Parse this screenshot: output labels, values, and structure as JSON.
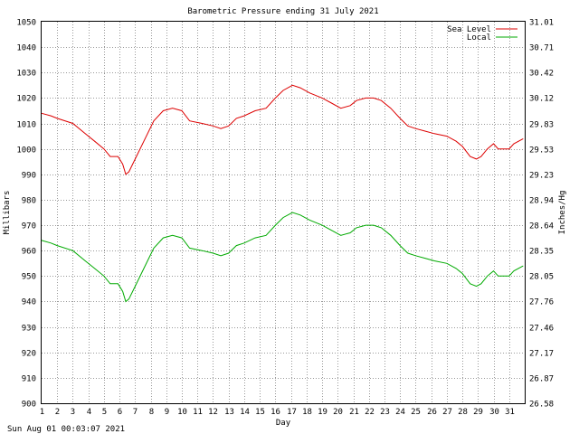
{
  "footer_timestamp": "Sun Aug 01 00:03:07 2021",
  "colors": {
    "sea_level": "#dd0000",
    "local": "#00aa00",
    "grid": "#999999",
    "axis": "#000000"
  },
  "chart_data": {
    "type": "line",
    "title": "Barometric Pressure ending 31 July 2021",
    "xlabel": "Day",
    "ylabel": "Millibars",
    "ylabel_right": "Inches/Hg",
    "grid": true,
    "legend_position": "top-right",
    "xlim": [
      1,
      32
    ],
    "ylim": [
      900,
      1050
    ],
    "x_ticks": [
      "1",
      "2",
      "3",
      "4",
      "5",
      "6",
      "7",
      "8",
      "9",
      "10",
      "11",
      "12",
      "13",
      "14",
      "15",
      "16",
      "17",
      "18",
      "19",
      "20",
      "21",
      "22",
      "23",
      "24",
      "25",
      "26",
      "27",
      "28",
      "29",
      "30",
      "31"
    ],
    "y_ticks": [
      "900",
      "910",
      "920",
      "930",
      "940",
      "950",
      "960",
      "970",
      "980",
      "990",
      "1000",
      "1010",
      "1020",
      "1030",
      "1040",
      "1050"
    ],
    "y_ticks_right": [
      "26.58",
      "26.87",
      "27.17",
      "27.46",
      "27.76",
      "28.05",
      "28.35",
      "28.64",
      "28.94",
      "29.23",
      "29.53",
      "29.83",
      "30.12",
      "30.42",
      "30.71",
      "31.01"
    ],
    "series": [
      {
        "name": "Sea Level",
        "x": [
          1.0,
          1.6,
          2.0,
          3.0,
          3.8,
          4.4,
          5.0,
          5.4,
          5.9,
          6.2,
          6.4,
          6.6,
          7.0,
          7.8,
          8.2,
          8.8,
          9.4,
          10.0,
          10.5,
          11.3,
          12.0,
          12.5,
          13.0,
          13.5,
          14.0,
          14.7,
          15.4,
          16.0,
          16.5,
          17.1,
          17.6,
          18.2,
          19.0,
          19.6,
          20.2,
          20.8,
          21.2,
          21.8,
          22.3,
          22.8,
          23.4,
          24.0,
          24.5,
          25.0,
          25.6,
          26.2,
          27.0,
          27.6,
          28.0,
          28.5,
          28.9,
          29.2,
          29.6,
          30.0,
          30.3,
          31.0,
          31.3,
          31.9
        ],
        "y": [
          1014,
          1013,
          1012,
          1010,
          1006,
          1003,
          1000,
          997,
          997,
          994,
          990,
          991,
          996,
          1006,
          1011,
          1015,
          1016,
          1015,
          1011,
          1010,
          1009,
          1008,
          1009,
          1012,
          1013,
          1015,
          1016,
          1020,
          1023,
          1025,
          1024,
          1022,
          1020,
          1018,
          1016,
          1017,
          1019,
          1020,
          1020,
          1019,
          1016,
          1012,
          1009,
          1008,
          1007,
          1006,
          1005,
          1003,
          1001,
          997,
          996,
          997,
          1000,
          1002,
          1000,
          1000,
          1002,
          1004
        ]
      },
      {
        "name": "Local",
        "x": [
          1.0,
          1.6,
          2.0,
          3.0,
          3.8,
          4.4,
          5.0,
          5.4,
          5.9,
          6.2,
          6.4,
          6.6,
          7.0,
          7.8,
          8.2,
          8.8,
          9.4,
          10.0,
          10.5,
          11.3,
          12.0,
          12.5,
          13.0,
          13.5,
          14.0,
          14.7,
          15.4,
          16.0,
          16.5,
          17.1,
          17.6,
          18.2,
          19.0,
          19.6,
          20.2,
          20.8,
          21.2,
          21.8,
          22.3,
          22.8,
          23.4,
          24.0,
          24.5,
          25.0,
          25.6,
          26.2,
          27.0,
          27.6,
          28.0,
          28.5,
          28.9,
          29.2,
          29.6,
          30.0,
          30.3,
          31.0,
          31.3,
          31.9
        ],
        "y": [
          964,
          963,
          962,
          960,
          956,
          953,
          950,
          947,
          947,
          944,
          940,
          941,
          946,
          956,
          961,
          965,
          966,
          965,
          961,
          960,
          959,
          958,
          959,
          962,
          963,
          965,
          966,
          970,
          973,
          975,
          974,
          972,
          970,
          968,
          966,
          967,
          969,
          970,
          970,
          969,
          966,
          962,
          959,
          958,
          957,
          956,
          955,
          953,
          951,
          947,
          946,
          947,
          950,
          952,
          950,
          950,
          952,
          954
        ]
      }
    ]
  }
}
